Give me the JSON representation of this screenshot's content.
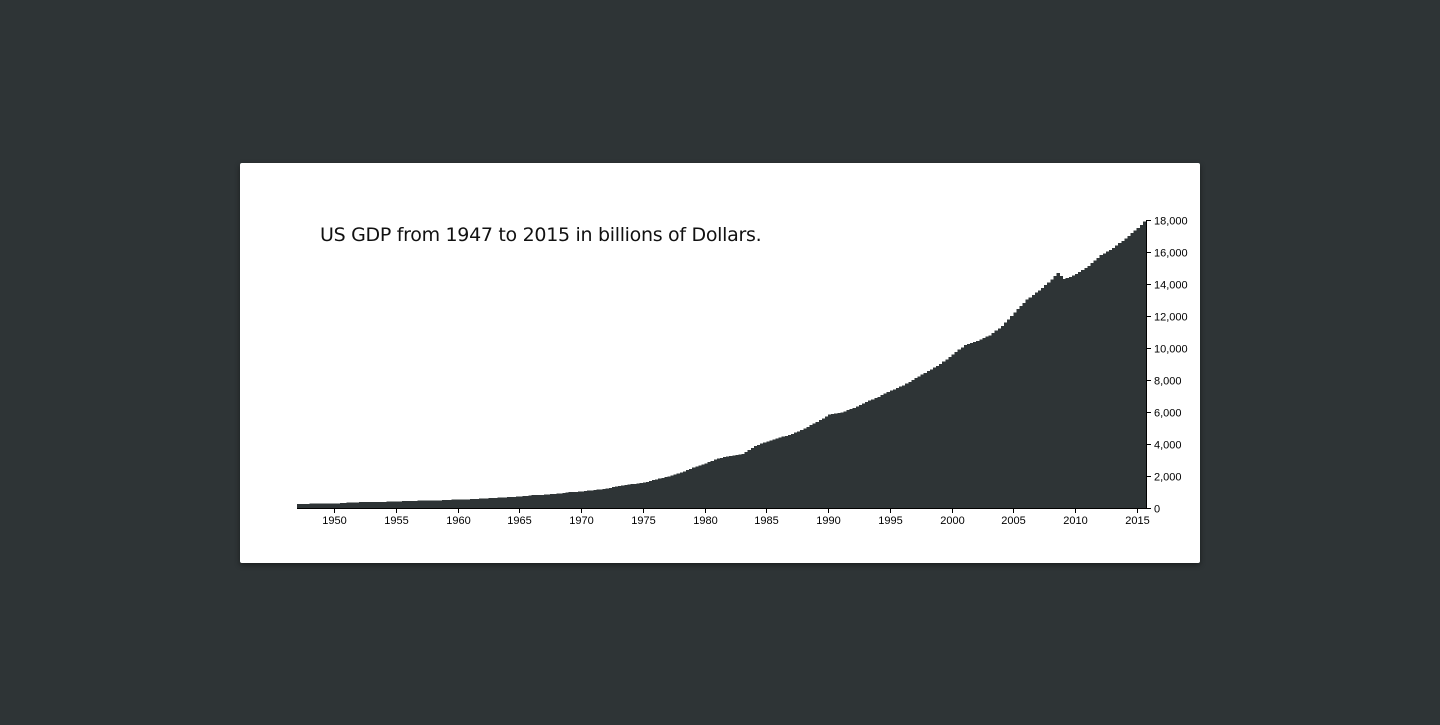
{
  "colors": {
    "page_background": "#2e3436",
    "card_background": "#ffffff",
    "bar_fill": "#2e3436"
  },
  "chart_data": {
    "type": "bar",
    "title": "US GDP from 1947 to 2015 in billions of Dollars.",
    "xlabel": "",
    "ylabel": "",
    "x_ticks": [
      "1950",
      "1955",
      "1960",
      "1965",
      "1970",
      "1975",
      "1980",
      "1985",
      "1990",
      "1995",
      "2000",
      "2005",
      "2010",
      "2015"
    ],
    "y_ticks": [
      "0",
      "2,000",
      "4,000",
      "6,000",
      "8,000",
      "10,000",
      "12,000",
      "14,000",
      "16,000",
      "18,000"
    ],
    "xlim": [
      1947,
      2015.75
    ],
    "ylim": [
      0,
      18000
    ],
    "y_axis_side": "right",
    "grid": false,
    "legend": "none",
    "bar_granularity": "quarterly",
    "anchors": [
      [
        1947,
        243
      ],
      [
        1948,
        266
      ],
      [
        1949,
        275
      ],
      [
        1950,
        281
      ],
      [
        1951,
        335
      ],
      [
        1952,
        360
      ],
      [
        1953,
        385
      ],
      [
        1954,
        386
      ],
      [
        1955,
        415
      ],
      [
        1956,
        438
      ],
      [
        1957,
        463
      ],
      [
        1958,
        462
      ],
      [
        1959,
        506
      ],
      [
        1960,
        542
      ],
      [
        1961,
        548
      ],
      [
        1962,
        598
      ],
      [
        1963,
        632
      ],
      [
        1964,
        678
      ],
      [
        1965,
        720
      ],
      [
        1966,
        798
      ],
      [
        1967,
        834
      ],
      [
        1968,
        898
      ],
      [
        1969,
        986
      ],
      [
        1970,
        1044
      ],
      [
        1971,
        1116
      ],
      [
        1972,
        1219
      ],
      [
        1973,
        1379
      ],
      [
        1974,
        1492
      ],
      [
        1975,
        1581
      ],
      [
        1976,
        1792
      ],
      [
        1977,
        1972
      ],
      [
        1978,
        2210
      ],
      [
        1979,
        2529
      ],
      [
        1980,
        2789
      ],
      [
        1981,
        3101
      ],
      [
        1982,
        3259
      ],
      [
        1983,
        3385
      ],
      [
        1984,
        3877
      ],
      [
        1985,
        4161
      ],
      [
        1986,
        4408
      ],
      [
        1987,
        4617
      ],
      [
        1988,
        4975
      ],
      [
        1989,
        5383
      ],
      [
        1990,
        5835
      ],
      [
        1991,
        5961
      ],
      [
        1992,
        6262
      ],
      [
        1993,
        6640
      ],
      [
        1994,
        6950
      ],
      [
        1995,
        7343
      ],
      [
        1996,
        7659
      ],
      [
        1997,
        8117
      ],
      [
        1998,
        8556
      ],
      [
        1999,
        9001
      ],
      [
        2000,
        9591
      ],
      [
        2001,
        10193
      ],
      [
        2002,
        10436
      ],
      [
        2003,
        10797
      ],
      [
        2004,
        11366
      ],
      [
        2005,
        12223
      ],
      [
        2006,
        13029
      ],
      [
        2007,
        13597
      ],
      [
        2008,
        14272
      ],
      [
        2008.5,
        14700
      ],
      [
        2009,
        14322
      ],
      [
        2009.5,
        14450
      ],
      [
        2010,
        14640
      ],
      [
        2011,
        15130
      ],
      [
        2012,
        15800
      ],
      [
        2013,
        16250
      ],
      [
        2014,
        16850
      ],
      [
        2015,
        17500
      ],
      [
        2015.5,
        17900
      ]
    ]
  }
}
